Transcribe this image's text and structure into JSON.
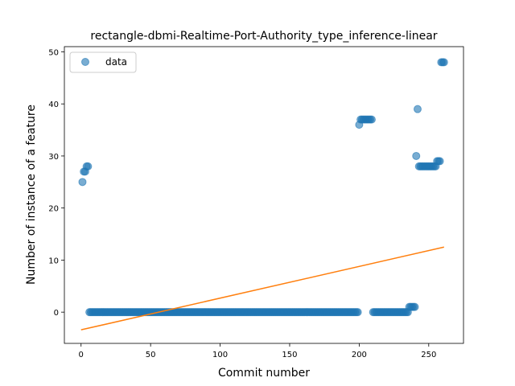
{
  "chart_data": {
    "type": "scatter",
    "title": "rectangle-dbmi-Realtime-Port-Authority_type_inference-linear",
    "xlabel": "Commit number",
    "ylabel": "Number of instance of a feature",
    "xlim": [
      -12,
      275
    ],
    "ylim": [
      -6,
      51
    ],
    "xticks": [
      0,
      50,
      100,
      150,
      200,
      250
    ],
    "yticks": [
      0,
      10,
      20,
      30,
      40,
      50
    ],
    "grid": false,
    "legend": {
      "position": "top-left",
      "entries": [
        "data"
      ]
    },
    "colors": {
      "data": "#1f77b4",
      "fit": "#ff7f0e"
    },
    "series": [
      {
        "name": "data",
        "kind": "scatter",
        "runs": [
          {
            "x_start": 1,
            "x_end": 1,
            "y": 25
          },
          {
            "x_start": 2,
            "x_end": 3,
            "y": 27
          },
          {
            "x_start": 4,
            "x_end": 5,
            "y": 28
          },
          {
            "x_start": 6,
            "x_end": 199,
            "y": 0
          },
          {
            "x_start": 200,
            "x_end": 200,
            "y": 36
          },
          {
            "x_start": 201,
            "x_end": 209,
            "y": 37
          },
          {
            "x_start": 210,
            "x_end": 235,
            "y": 0
          },
          {
            "x_start": 236,
            "x_end": 240,
            "y": 1
          },
          {
            "x_start": 241,
            "x_end": 241,
            "y": 30
          },
          {
            "x_start": 242,
            "x_end": 242,
            "y": 39
          },
          {
            "x_start": 243,
            "x_end": 255,
            "y": 28
          },
          {
            "x_start": 256,
            "x_end": 258,
            "y": 29
          },
          {
            "x_start": 259,
            "x_end": 261,
            "y": 48
          }
        ]
      },
      {
        "kind": "line",
        "x": [
          0,
          261
        ],
        "y": [
          -3.4,
          12.5
        ]
      }
    ]
  }
}
